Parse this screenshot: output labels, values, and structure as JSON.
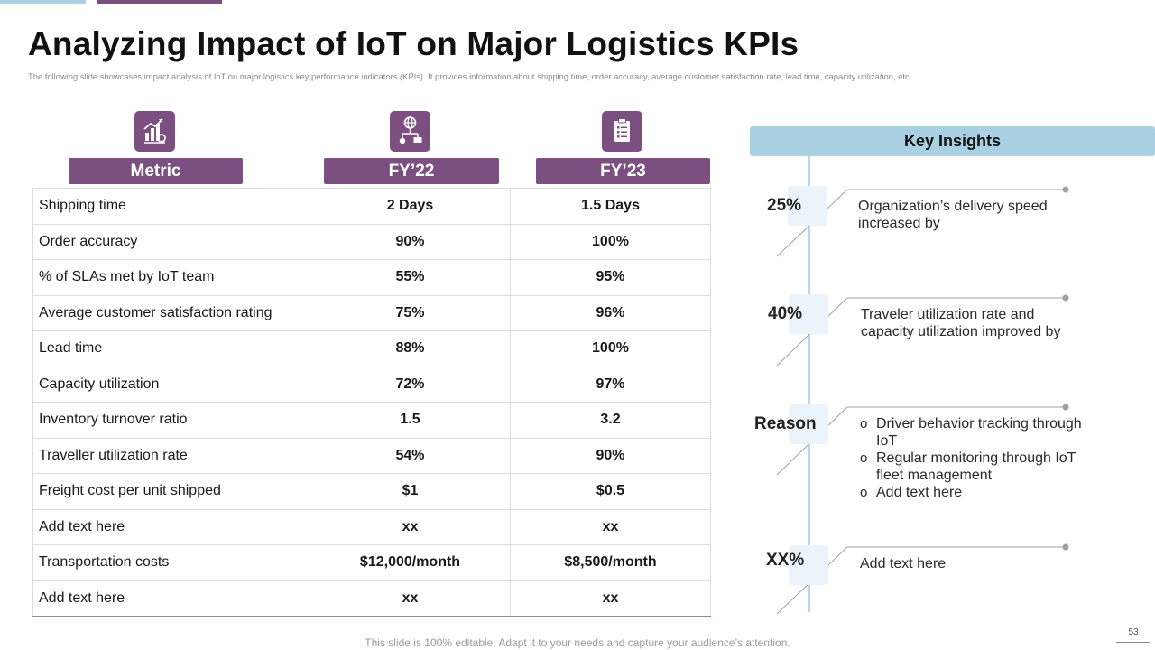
{
  "title": "Analyzing Impact of IoT on Major Logistics KPIs",
  "subtitle": "The following slide showcases impact analysis of IoT on major logistics key performance indicators (KPIs). It provides information about shipping time, order accuracy, average customer satisfaction rate, lead time, capacity utilization, etc.",
  "icons": {
    "metric": "analytics-chart-icon",
    "fy22": "network-globe-icon",
    "fy23": "clipboard-checklist-icon"
  },
  "colors": {
    "accent": "#7b4f80",
    "insights": "#a9d0e3"
  },
  "table": {
    "headers": [
      "Metric",
      "FY’22",
      "FY’23"
    ],
    "rows": [
      [
        "Shipping time",
        "2 Days",
        "1.5 Days"
      ],
      [
        "Order accuracy",
        "90%",
        "100%"
      ],
      [
        "% of SLAs met by IoT team",
        "55%",
        "95%"
      ],
      [
        "Average customer satisfaction rating",
        "75%",
        "96%"
      ],
      [
        "Lead time",
        "88%",
        "100%"
      ],
      [
        "Capacity utilization",
        "72%",
        "97%"
      ],
      [
        "Inventory  turnover ratio",
        "1.5",
        "3.2"
      ],
      [
        "Traveller  utilization rate",
        "54%",
        "90%"
      ],
      [
        "Freight cost per unit shipped",
        "$1",
        "$0.5"
      ],
      [
        "Add text here",
        "xx",
        "xx"
      ],
      [
        "Transportation  costs",
        "$12,000/month",
        "$8,500/month"
      ],
      [
        "Add text here",
        "xx",
        "xx"
      ]
    ]
  },
  "insights": {
    "header": "Key Insights",
    "items": [
      {
        "value": "25%",
        "text": "Organization’s delivery speed increased by"
      },
      {
        "value": "40%",
        "text": "Traveler utilization rate and capacity utilization improved by"
      },
      {
        "value": "Reason",
        "bullets": [
          "Driver behavior tracking through IoT",
          "Regular monitoring through IoT fleet management",
          "Add text here"
        ]
      },
      {
        "value": "XX%",
        "text": "Add text here"
      }
    ]
  },
  "footer": "This slide is 100% editable. Adapt it to your needs and capture your audience’s attention.",
  "page_number": "53"
}
